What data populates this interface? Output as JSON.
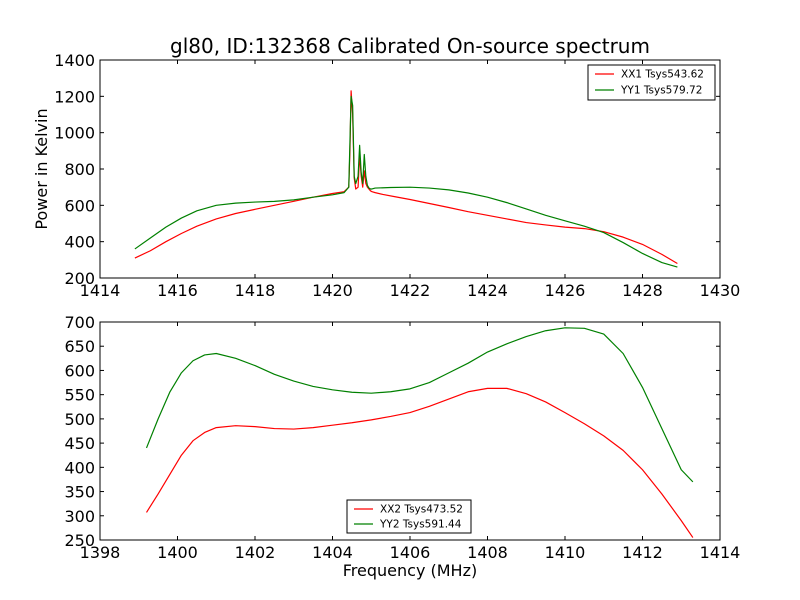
{
  "title": "gl80, ID:132368 Calibrated On-source spectrum",
  "chart_data": [
    {
      "type": "line",
      "ylabel": "Power in Kelvin",
      "xlabel": "",
      "xlim": [
        1414,
        1430
      ],
      "ylim": [
        200,
        1400
      ],
      "xticks": [
        1414,
        1416,
        1418,
        1420,
        1422,
        1424,
        1426,
        1428,
        1430
      ],
      "yticks": [
        200,
        400,
        600,
        800,
        1000,
        1200,
        1400
      ],
      "grid": false,
      "legend_position": "top-right",
      "series": [
        {
          "name": "XX1 Tsys543.62",
          "color": "#ff0000",
          "x": [
            1414.9,
            1415.3,
            1415.7,
            1416.1,
            1416.5,
            1417.0,
            1417.5,
            1418.0,
            1418.5,
            1419.0,
            1419.5,
            1420.0,
            1420.3,
            1420.42,
            1420.45,
            1420.48,
            1420.52,
            1420.56,
            1420.6,
            1420.66,
            1420.7,
            1420.74,
            1420.78,
            1420.82,
            1420.86,
            1420.9,
            1420.94,
            1420.98,
            1421.02,
            1421.1,
            1421.3,
            1421.6,
            1422.0,
            1422.5,
            1423.0,
            1423.5,
            1424.0,
            1424.5,
            1425.0,
            1425.5,
            1426.0,
            1426.5,
            1427.0,
            1427.5,
            1428.0,
            1428.5,
            1428.9
          ],
          "y": [
            310,
            350,
            400,
            445,
            485,
            525,
            555,
            578,
            600,
            622,
            645,
            665,
            675,
            700,
            900,
            1230,
            1100,
            750,
            690,
            700,
            880,
            760,
            700,
            790,
            720,
            700,
            690,
            680,
            675,
            670,
            660,
            648,
            632,
            610,
            588,
            565,
            545,
            525,
            505,
            492,
            480,
            472,
            455,
            425,
            385,
            330,
            280
          ]
        },
        {
          "name": "YY1 Tsys579.72",
          "color": "#008000",
          "x": [
            1414.9,
            1415.3,
            1415.7,
            1416.1,
            1416.5,
            1417.0,
            1417.5,
            1418.0,
            1418.5,
            1419.0,
            1419.5,
            1420.0,
            1420.3,
            1420.42,
            1420.45,
            1420.48,
            1420.52,
            1420.56,
            1420.6,
            1420.66,
            1420.7,
            1420.74,
            1420.78,
            1420.82,
            1420.86,
            1420.9,
            1420.94,
            1420.98,
            1421.02,
            1421.1,
            1421.5,
            1422.0,
            1422.5,
            1423.0,
            1423.5,
            1424.0,
            1424.5,
            1425.0,
            1425.5,
            1426.0,
            1426.5,
            1427.0,
            1427.5,
            1428.0,
            1428.5,
            1428.9
          ],
          "y": [
            360,
            420,
            480,
            530,
            570,
            600,
            612,
            618,
            622,
            630,
            645,
            658,
            670,
            700,
            950,
            1200,
            1150,
            760,
            720,
            760,
            930,
            780,
            720,
            880,
            760,
            710,
            695,
            690,
            690,
            695,
            698,
            700,
            695,
            685,
            668,
            645,
            615,
            580,
            545,
            515,
            485,
            450,
            395,
            335,
            285,
            260
          ]
        }
      ]
    },
    {
      "type": "line",
      "ylabel": "",
      "xlabel": "Frequency (MHz)",
      "xlim": [
        1398,
        1414
      ],
      "ylim": [
        250,
        700
      ],
      "xticks": [
        1398,
        1400,
        1402,
        1404,
        1406,
        1408,
        1410,
        1412,
        1414
      ],
      "yticks": [
        250,
        300,
        350,
        400,
        450,
        500,
        550,
        600,
        650,
        700
      ],
      "grid": false,
      "legend_position": "bottom-center",
      "series": [
        {
          "name": "XX2 Tsys473.52",
          "color": "#ff0000",
          "x": [
            1399.2,
            1399.5,
            1399.8,
            1400.1,
            1400.4,
            1400.7,
            1401.0,
            1401.5,
            1402.0,
            1402.5,
            1403.0,
            1403.5,
            1404.0,
            1404.5,
            1405.0,
            1405.5,
            1406.0,
            1406.5,
            1407.0,
            1407.5,
            1408.0,
            1408.5,
            1409.0,
            1409.5,
            1410.0,
            1410.5,
            1411.0,
            1411.5,
            1412.0,
            1412.5,
            1413.0,
            1413.3
          ],
          "y": [
            307,
            345,
            385,
            425,
            455,
            472,
            482,
            486,
            484,
            480,
            479,
            482,
            487,
            492,
            498,
            505,
            513,
            526,
            541,
            556,
            563,
            563,
            552,
            535,
            513,
            490,
            465,
            435,
            395,
            345,
            290,
            255
          ]
        },
        {
          "name": "YY2 Tsys591.44",
          "color": "#008000",
          "x": [
            1399.2,
            1399.5,
            1399.8,
            1400.1,
            1400.4,
            1400.7,
            1401.0,
            1401.5,
            1402.0,
            1402.5,
            1403.0,
            1403.5,
            1404.0,
            1404.5,
            1405.0,
            1405.5,
            1406.0,
            1406.5,
            1407.0,
            1407.5,
            1408.0,
            1408.5,
            1409.0,
            1409.5,
            1410.0,
            1410.5,
            1411.0,
            1411.5,
            1412.0,
            1412.5,
            1413.0,
            1413.3
          ],
          "y": [
            440,
            500,
            555,
            595,
            620,
            632,
            635,
            625,
            610,
            592,
            578,
            567,
            560,
            555,
            553,
            556,
            562,
            575,
            595,
            615,
            638,
            655,
            670,
            682,
            688,
            687,
            675,
            635,
            565,
            480,
            395,
            370
          ]
        }
      ]
    }
  ]
}
